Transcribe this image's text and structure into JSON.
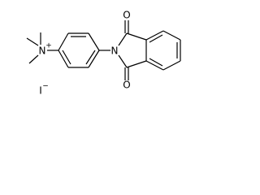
{
  "atoms": [
    {
      "label": "N",
      "charge": "+"
    },
    {
      "label": "N"
    },
    {
      "label": "O"
    },
    {
      "label": "O"
    },
    {
      "label": "I",
      "charge": "−"
    }
  ]
}
